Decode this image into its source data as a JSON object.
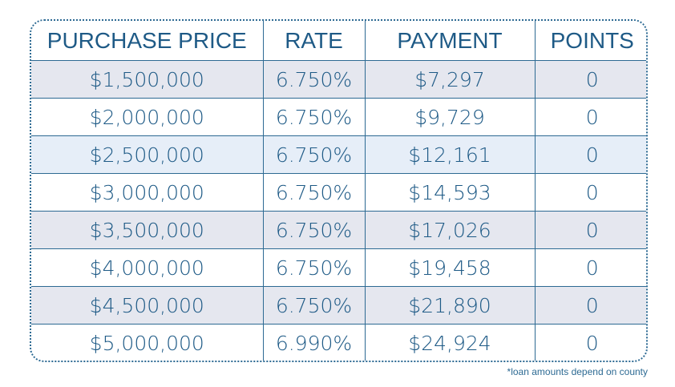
{
  "table": {
    "headers": [
      "PURCHASE PRICE",
      "RATE",
      "PAYMENT",
      "POINTS"
    ],
    "rows": [
      {
        "price": "$1,500,000",
        "rate": "6.750%",
        "payment": "$7,297",
        "points": "0"
      },
      {
        "price": "$2,000,000",
        "rate": "6.750%",
        "payment": "$9,729",
        "points": "0"
      },
      {
        "price": "$2,500,000",
        "rate": "6.750%",
        "payment": "$12,161",
        "points": "0"
      },
      {
        "price": "$3,000,000",
        "rate": "6.750%",
        "payment": "$14,593",
        "points": "0"
      },
      {
        "price": "$3,500,000",
        "rate": "6.750%",
        "payment": "$17,026",
        "points": "0"
      },
      {
        "price": "$4,000,000",
        "rate": "6.750%",
        "payment": "$19,458",
        "points": "0"
      },
      {
        "price": "$4,500,000",
        "rate": "6.750%",
        "payment": "$21,890",
        "points": "0"
      },
      {
        "price": "$5,000,000",
        "rate": "6.990%",
        "payment": "$24,924",
        "points": "0"
      }
    ]
  },
  "footnote": "*loan amounts depend on county",
  "colors": {
    "text": "#1e5a86",
    "border": "#2d6a93",
    "row_shade": "#e5e7ef",
    "row_light": "#e6eef8"
  }
}
